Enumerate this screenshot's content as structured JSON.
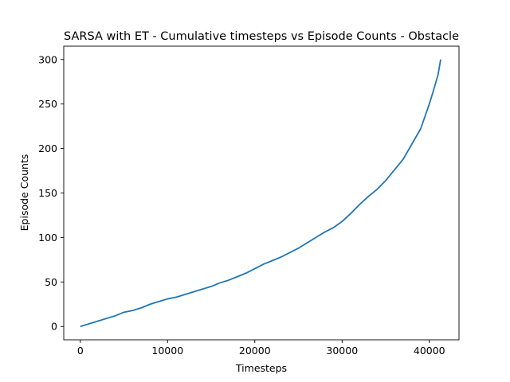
{
  "chart_data": {
    "type": "line",
    "title": "SARSA with ET - Cumulative timesteps vs Episode Counts - Obstacle",
    "xlabel": "Timesteps",
    "ylabel": "Episode Counts",
    "xlim": [
      -1900,
      43400
    ],
    "ylim": [
      -15,
      315
    ],
    "xticks": [
      0,
      10000,
      20000,
      30000,
      40000
    ],
    "yticks": [
      0,
      50,
      100,
      150,
      200,
      250,
      300
    ],
    "grid": false,
    "series": [
      {
        "color": "#1f77b4",
        "x": [
          0,
          1000,
          2000,
          3000,
          4000,
          5000,
          6000,
          7000,
          8000,
          9000,
          10000,
          11000,
          12000,
          13000,
          14000,
          15000,
          16000,
          17000,
          18000,
          19000,
          20000,
          21000,
          22000,
          23000,
          24000,
          25000,
          26000,
          27000,
          28000,
          29000,
          30000,
          31000,
          32000,
          33000,
          34000,
          35000,
          36000,
          37000,
          38000,
          39000,
          40000,
          40500,
          41000,
          41300
        ],
        "y": [
          0,
          3,
          6,
          9,
          12,
          16,
          18,
          21,
          25,
          28,
          31,
          33,
          36,
          39,
          42,
          45,
          49,
          52,
          56,
          60,
          65,
          70,
          74,
          78,
          83,
          88,
          94,
          100,
          106,
          111,
          118,
          127,
          137,
          146,
          154,
          164,
          176,
          188,
          205,
          222,
          250,
          266,
          283,
          300
        ]
      }
    ]
  }
}
